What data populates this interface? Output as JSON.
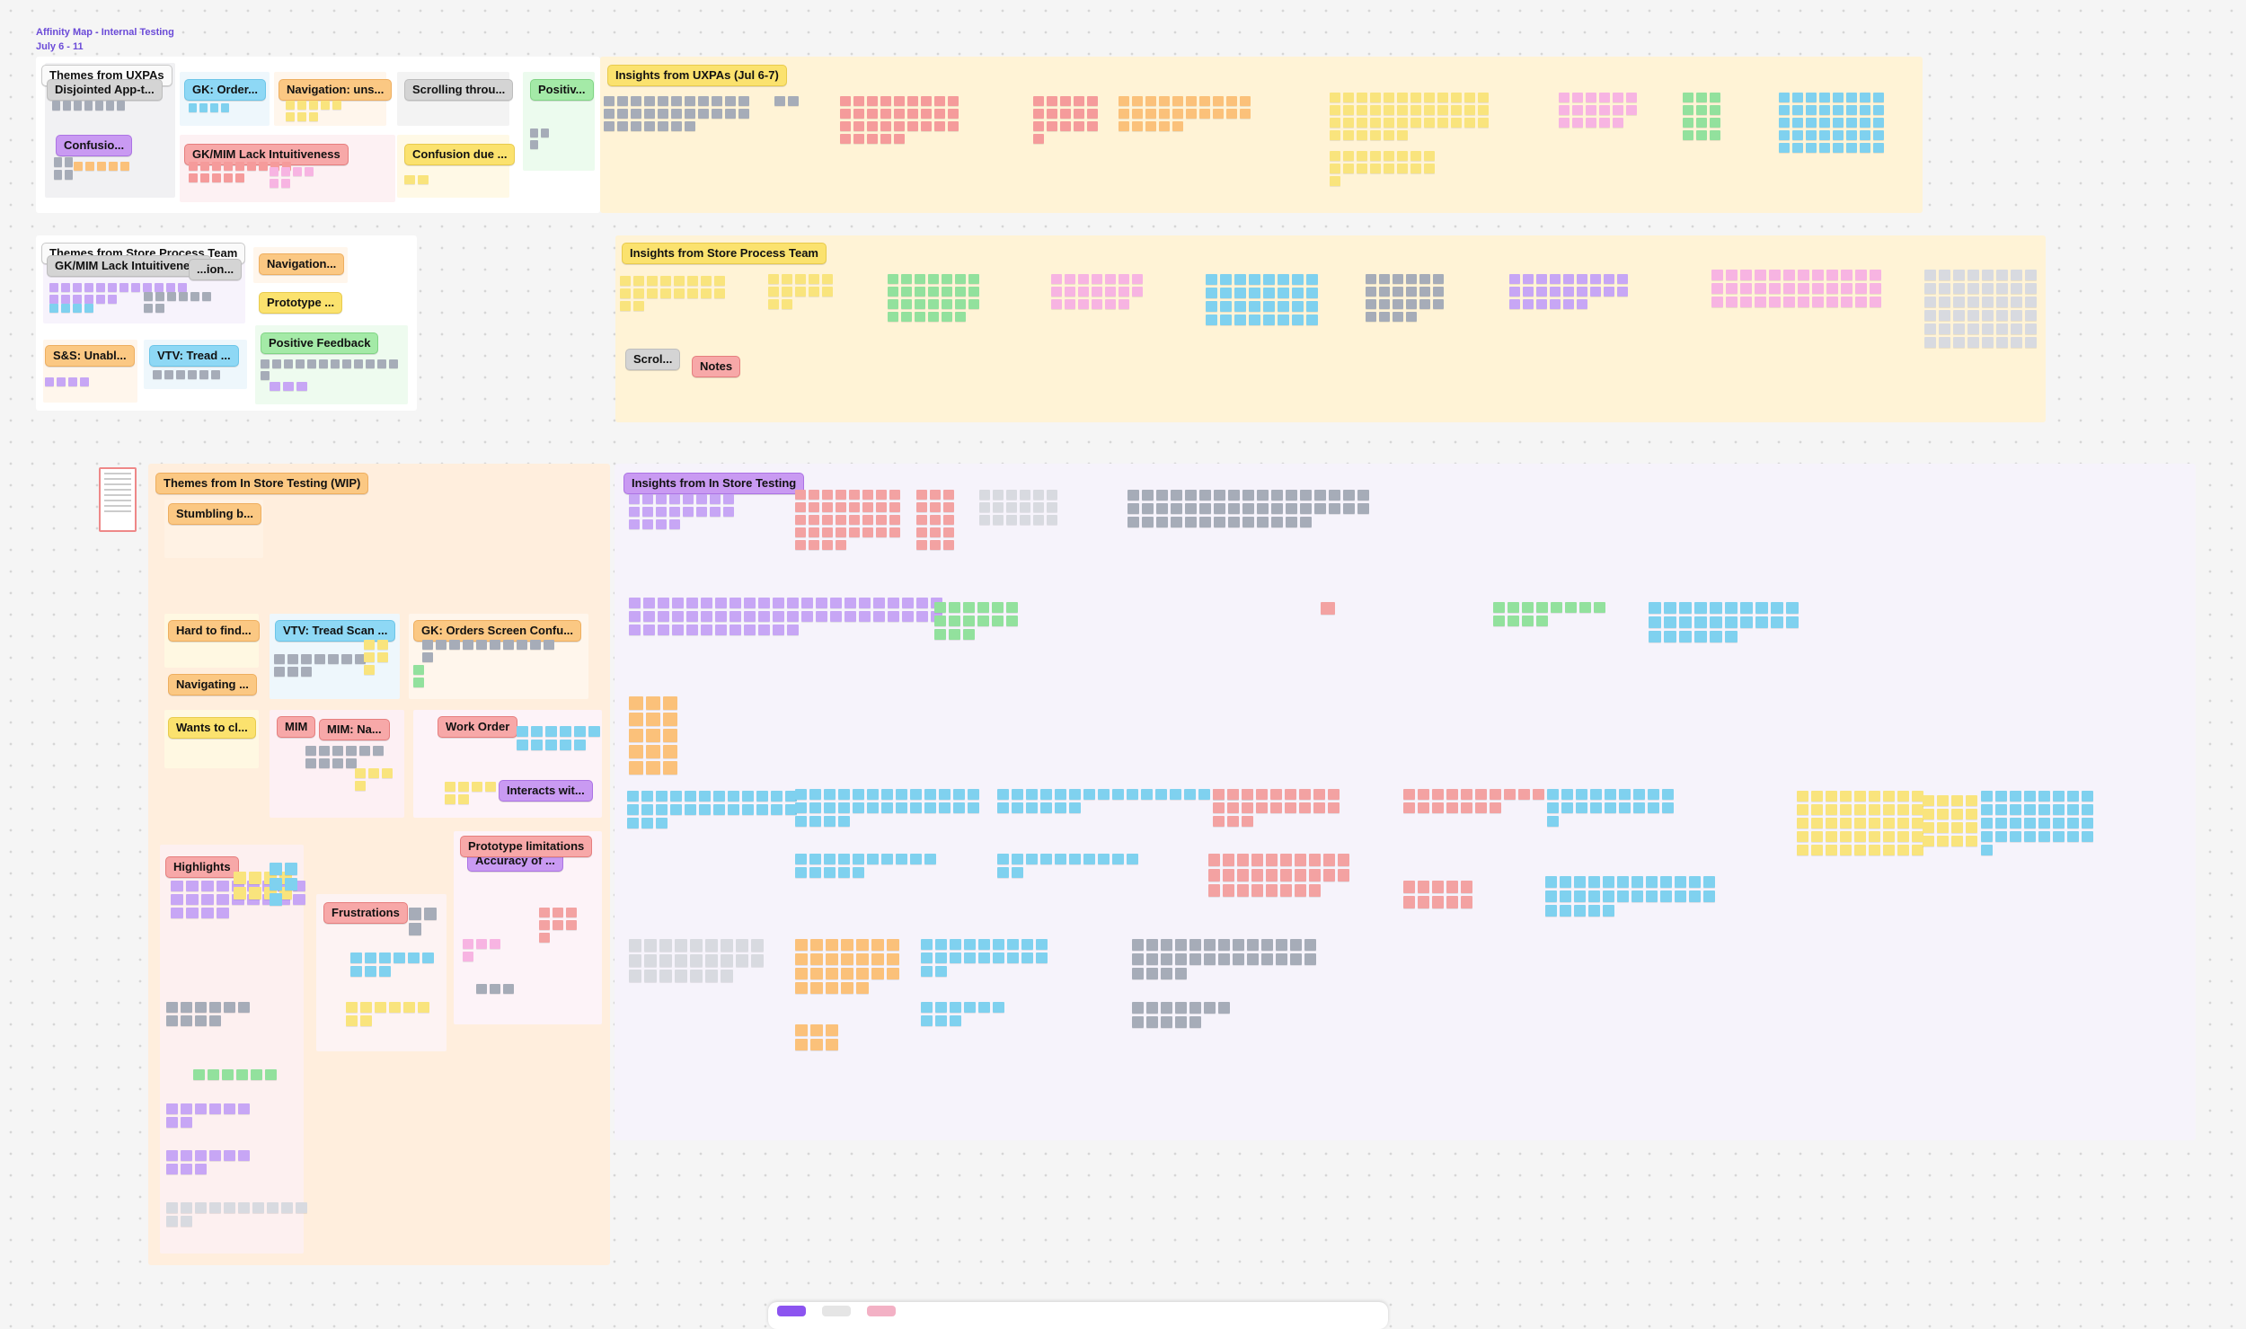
{
  "board": {
    "title": "Affinity Map - Internal Testing",
    "date_range": "July 6 - 11"
  },
  "sections": {
    "uxpa_themes": {
      "title": "Themes from UXPAs",
      "labels": [
        "Disjointed App-t...",
        "GK: Order...",
        "Navigation: uns...",
        "Scrolling throu...",
        "Positiv...",
        "Confusio...",
        "GK/MIM Lack Intuitiveness",
        "Confusion due ..."
      ]
    },
    "uxpa_insights": {
      "title": "Insights from UXPAs (Jul 6-7)"
    },
    "store_themes": {
      "title": "Themes from Store Process Team",
      "labels": [
        "GK/MIM Lack Intuitiveness",
        "...ion...",
        "Navigation...",
        "Prototype ...",
        "S&S: Unabl...",
        "VTV: Tread ...",
        "Positive Feedback"
      ]
    },
    "store_insights": {
      "title": "Insights from Store Process Team",
      "labels": [
        "Scrol...",
        "Notes"
      ]
    },
    "instore_themes": {
      "title": "Themes from In Store Testing (WIP)",
      "labels": [
        "Stumbling b...",
        "Hard to find...",
        "VTV: Tread Scan ...",
        "GK: Orders Screen Confu...",
        "Navigating ...",
        "Wants to cl...",
        "MIM",
        "MIM: Na...",
        "Work Order",
        "Interacts wit...",
        "Highlights",
        "Frustrations",
        "Prototype limitations",
        "Accuracy of ..."
      ]
    },
    "instore_insights": {
      "title": "Insights from In Store Testing"
    }
  },
  "toolbar": {
    "buttons": [
      "select-tool",
      "sticky-note-tool",
      "shape-tool"
    ]
  },
  "colors": {
    "accent": "#6b4bd8",
    "sticky_yellow": "#f9e47d",
    "sticky_blue": "#7fd1ef",
    "sticky_gray": "#a6acb8",
    "sticky_orange": "#fbc17a",
    "sticky_pink": "#f59b9b",
    "sticky_green": "#92e19d",
    "sticky_purple": "#c7a6f5"
  }
}
